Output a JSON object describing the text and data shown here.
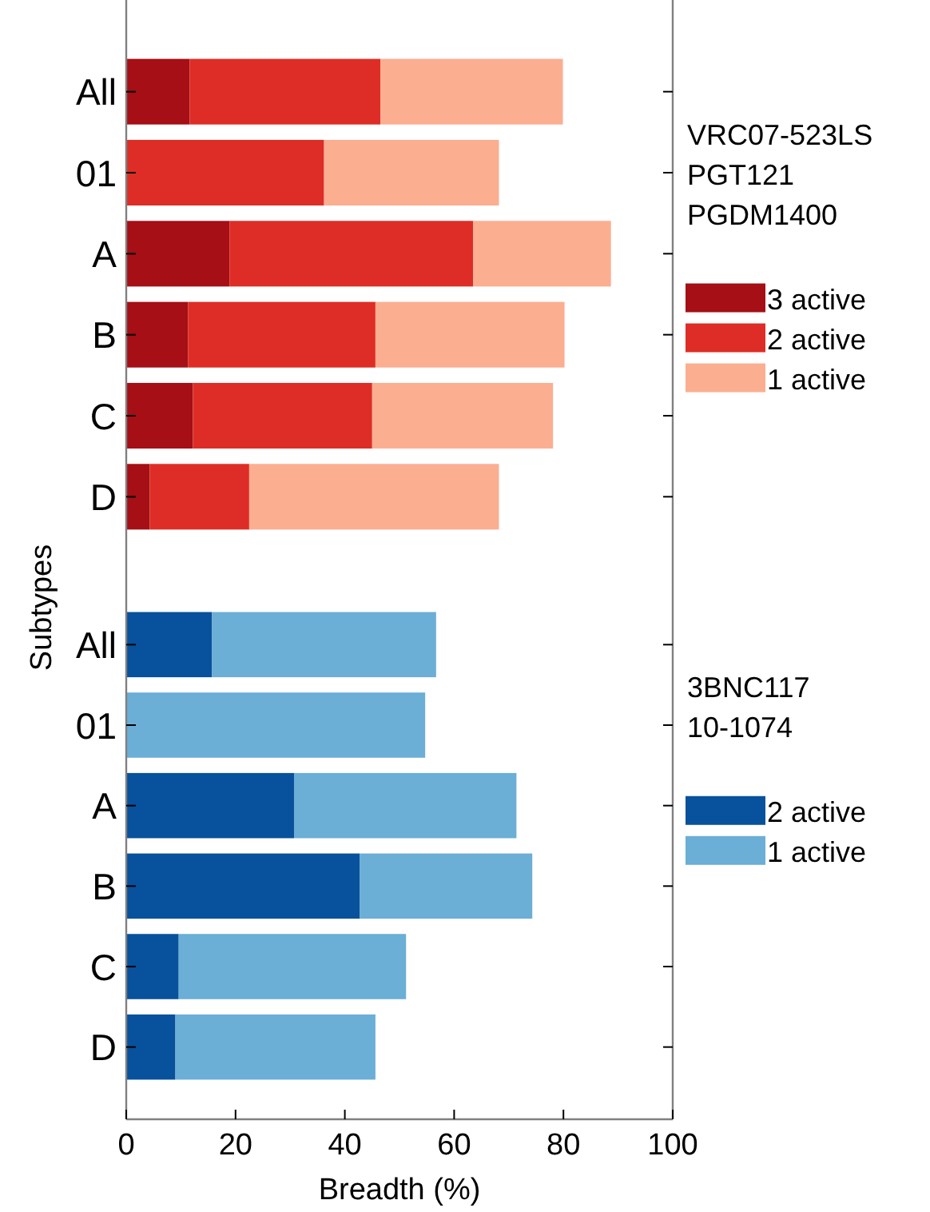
{
  "chart_data": [
    {
      "type": "bar",
      "orientation": "horizontal",
      "stacked": true,
      "ylabel": "Subtypes",
      "legend_title": "VRC07-523LS\nPGT121\nPGDM1400",
      "legend": "right",
      "tick_labels": "y",
      "xlim": [
        0,
        100
      ],
      "categories": [
        "All",
        "01",
        "A",
        "B",
        "C",
        "D"
      ],
      "series": [
        {
          "name": "3 active",
          "color": "#a50f15",
          "values": [
            11.6,
            0,
            18.9,
            11.3,
            12.2,
            4.3
          ]
        },
        {
          "name": "2 active",
          "color": "#de2d26",
          "values": [
            34.9,
            36.2,
            44.6,
            34.3,
            32.8,
            18.2
          ]
        },
        {
          "name": "1 active",
          "color": "#fcae91",
          "values": [
            33.4,
            32.0,
            25.2,
            34.6,
            33.1,
            45.7
          ]
        }
      ]
    },
    {
      "type": "bar",
      "orientation": "horizontal",
      "stacked": true,
      "xlabel": "Breadth (%)",
      "legend_title": "3BNC117\n10-1074",
      "legend": "right",
      "xlim": [
        0,
        100
      ],
      "xticks": [
        0,
        20,
        40,
        60,
        80,
        100
      ],
      "categories": [
        "All",
        "01",
        "A",
        "B",
        "C",
        "D"
      ],
      "series": [
        {
          "name": "2 active",
          "color": "#08519c",
          "values": [
            15.7,
            0,
            30.7,
            42.7,
            9.6,
            9.0
          ]
        },
        {
          "name": "1 active",
          "color": "#6baed6",
          "values": [
            41.0,
            54.7,
            40.7,
            31.6,
            41.6,
            36.6
          ]
        }
      ]
    }
  ]
}
